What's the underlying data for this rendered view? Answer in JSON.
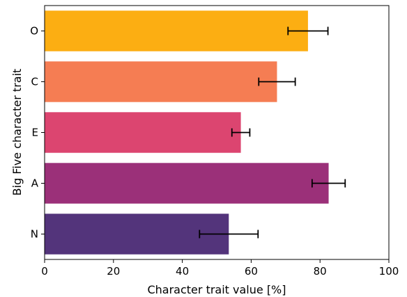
{
  "chart_data": {
    "type": "bar",
    "orientation": "horizontal",
    "categories": [
      "O",
      "C",
      "E",
      "A",
      "N"
    ],
    "values": [
      76.5,
      67.5,
      57,
      82.5,
      53.5
    ],
    "errors": [
      5.8,
      5.3,
      2.6,
      4.8,
      8.5
    ],
    "colors": [
      "#fcae12",
      "#f57d53",
      "#dc4570",
      "#9b3079",
      "#53347b"
    ],
    "xlabel": "Character trait value [%]",
    "ylabel": "Big Five character trait",
    "xlim": [
      0,
      100
    ],
    "xticks": [
      0,
      20,
      40,
      60,
      80,
      100
    ],
    "grid": false,
    "legend": "none"
  }
}
